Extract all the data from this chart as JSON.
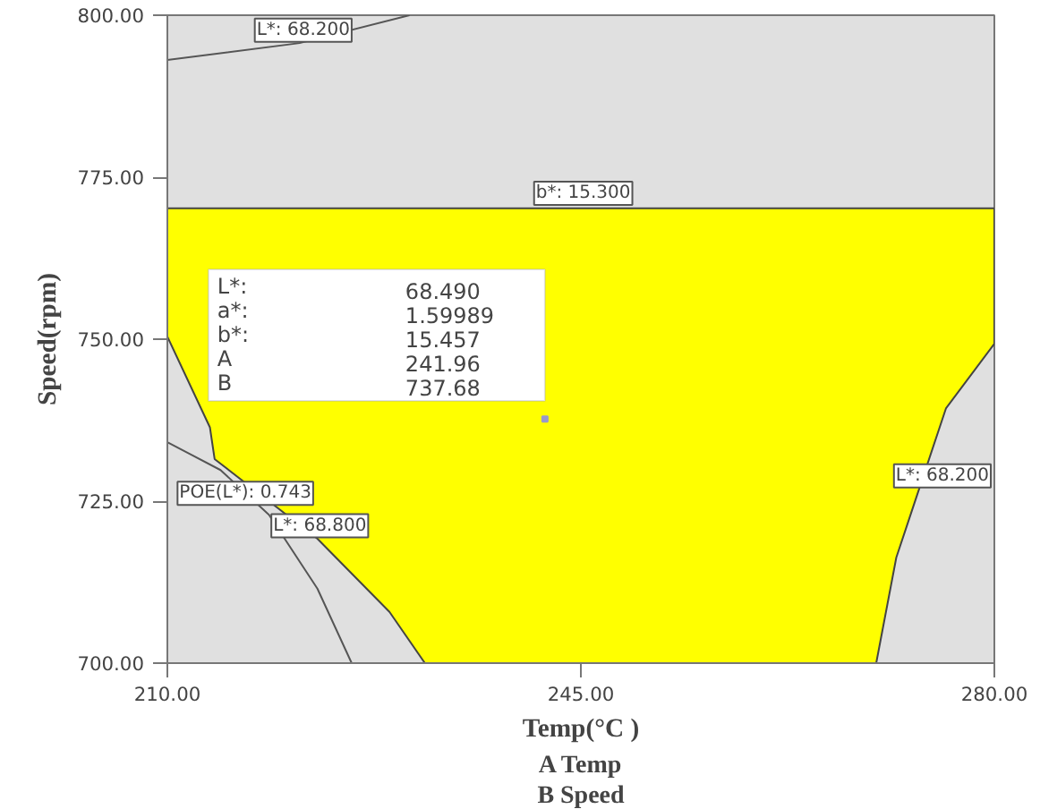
{
  "chart_data": {
    "type": "area",
    "xlabel": "Temp(°C )",
    "ylabel": "Speed(rpm)",
    "xlim": [
      210,
      280
    ],
    "ylim": [
      700,
      800
    ],
    "xticks": [
      {
        "value": 210,
        "label": "210.00"
      },
      {
        "value": 245,
        "label": "245.00"
      },
      {
        "value": 280,
        "label": "280.00"
      }
    ],
    "yticks": [
      {
        "value": 700,
        "label": "700.00"
      },
      {
        "value": 725,
        "label": "725.00"
      },
      {
        "value": 750,
        "label": "750.00"
      },
      {
        "value": 775,
        "label": "775.00"
      },
      {
        "value": 800,
        "label": "800.00"
      }
    ],
    "grid": false,
    "series": [
      {
        "color": "#ffff00",
        "x": [
          210,
          280,
          280,
          275.9,
          271.7,
          270.0,
          231.8,
          228.8,
          222.7,
          214.0,
          213.6,
          210
        ],
        "values": [
          770.2,
          770.2,
          749.3,
          739.3,
          716.3,
          700,
          700,
          707.9,
          719.2,
          731.5,
          736.4,
          750.4
        ]
      },
      {
        "type": "line",
        "color": "#555555",
        "x": [
          210,
          221.2,
          230.5
        ],
        "values": [
          793.1,
          795.7,
          800
        ]
      },
      {
        "type": "line",
        "color": "#555555",
        "x": [
          210,
          214.5,
          218.6,
          222.7,
          225.6
        ],
        "values": [
          734.1,
          729.8,
          722.9,
          711.5,
          700
        ]
      },
      {
        "type": "scatter",
        "color": "#9999cc",
        "x": [
          241.96
        ],
        "values": [
          737.68
        ]
      }
    ],
    "annotations": [
      "L*: 68.200",
      "b*: 15.300",
      "POE(L*): 0.743",
      "L*: 68.800",
      "L*: 68.200",
      "L*:",
      "68.490",
      "a*:",
      "1.59989",
      "b*:",
      "15.457",
      "A",
      "241.96",
      "B",
      "737.68",
      "A Temp",
      "B Speed"
    ]
  }
}
